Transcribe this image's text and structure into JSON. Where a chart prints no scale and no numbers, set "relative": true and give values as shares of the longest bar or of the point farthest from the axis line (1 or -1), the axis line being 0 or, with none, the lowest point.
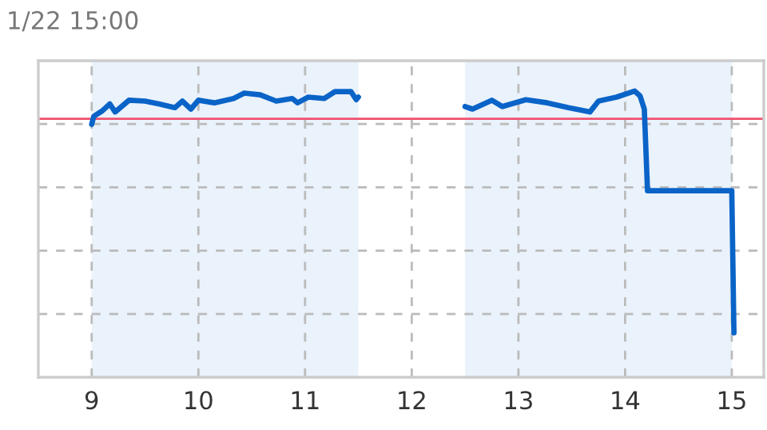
{
  "chart_data": {
    "type": "line",
    "title": "1/22 15:00",
    "relative": true,
    "x": [
      9.0,
      9.02,
      9.1,
      9.17,
      9.22,
      9.35,
      9.5,
      9.63,
      9.78,
      9.85,
      9.93,
      10.0,
      10.15,
      10.33,
      10.43,
      10.58,
      10.73,
      10.88,
      10.93,
      11.03,
      11.18,
      11.28,
      11.43,
      11.48,
      11.5,
      12.0,
      12.5,
      12.57,
      12.75,
      12.85,
      13.07,
      13.27,
      13.47,
      13.67,
      13.75,
      13.92,
      14.09,
      14.14,
      14.18,
      14.21,
      15.0,
      15.02
    ],
    "series": [
      {
        "color": "#0a64c8",
        "values": [
          0.884,
          0.912,
          0.931,
          0.955,
          0.927,
          0.968,
          0.965,
          0.955,
          0.942,
          0.965,
          0.937,
          0.968,
          0.959,
          0.974,
          0.993,
          0.987,
          0.965,
          0.974,
          0.959,
          0.979,
          0.974,
          0.998,
          0.998,
          0.97,
          0.979,
          null,
          0.946,
          0.937,
          0.968,
          0.946,
          0.97,
          0.959,
          0.942,
          0.927,
          0.965,
          0.979,
          1.0,
          0.983,
          0.937,
          0.652,
          0.652,
          0.155
        ]
      }
    ],
    "xlim": [
      8.5,
      15.3
    ],
    "xticks": [
      9,
      10,
      11,
      12,
      13,
      14,
      15
    ],
    "ref_lines": [
      {
        "axis": "y",
        "value": 0.903,
        "color": "#f0506e"
      }
    ],
    "bands": [
      {
        "axis": "x",
        "from": 9,
        "to": 11.5,
        "color": "#eaf2fb"
      },
      {
        "axis": "x",
        "from": 12.5,
        "to": 15,
        "color": "#eaf2fb"
      }
    ],
    "grid": true,
    "legend": false,
    "marker": "none",
    "line_style": "solid"
  }
}
